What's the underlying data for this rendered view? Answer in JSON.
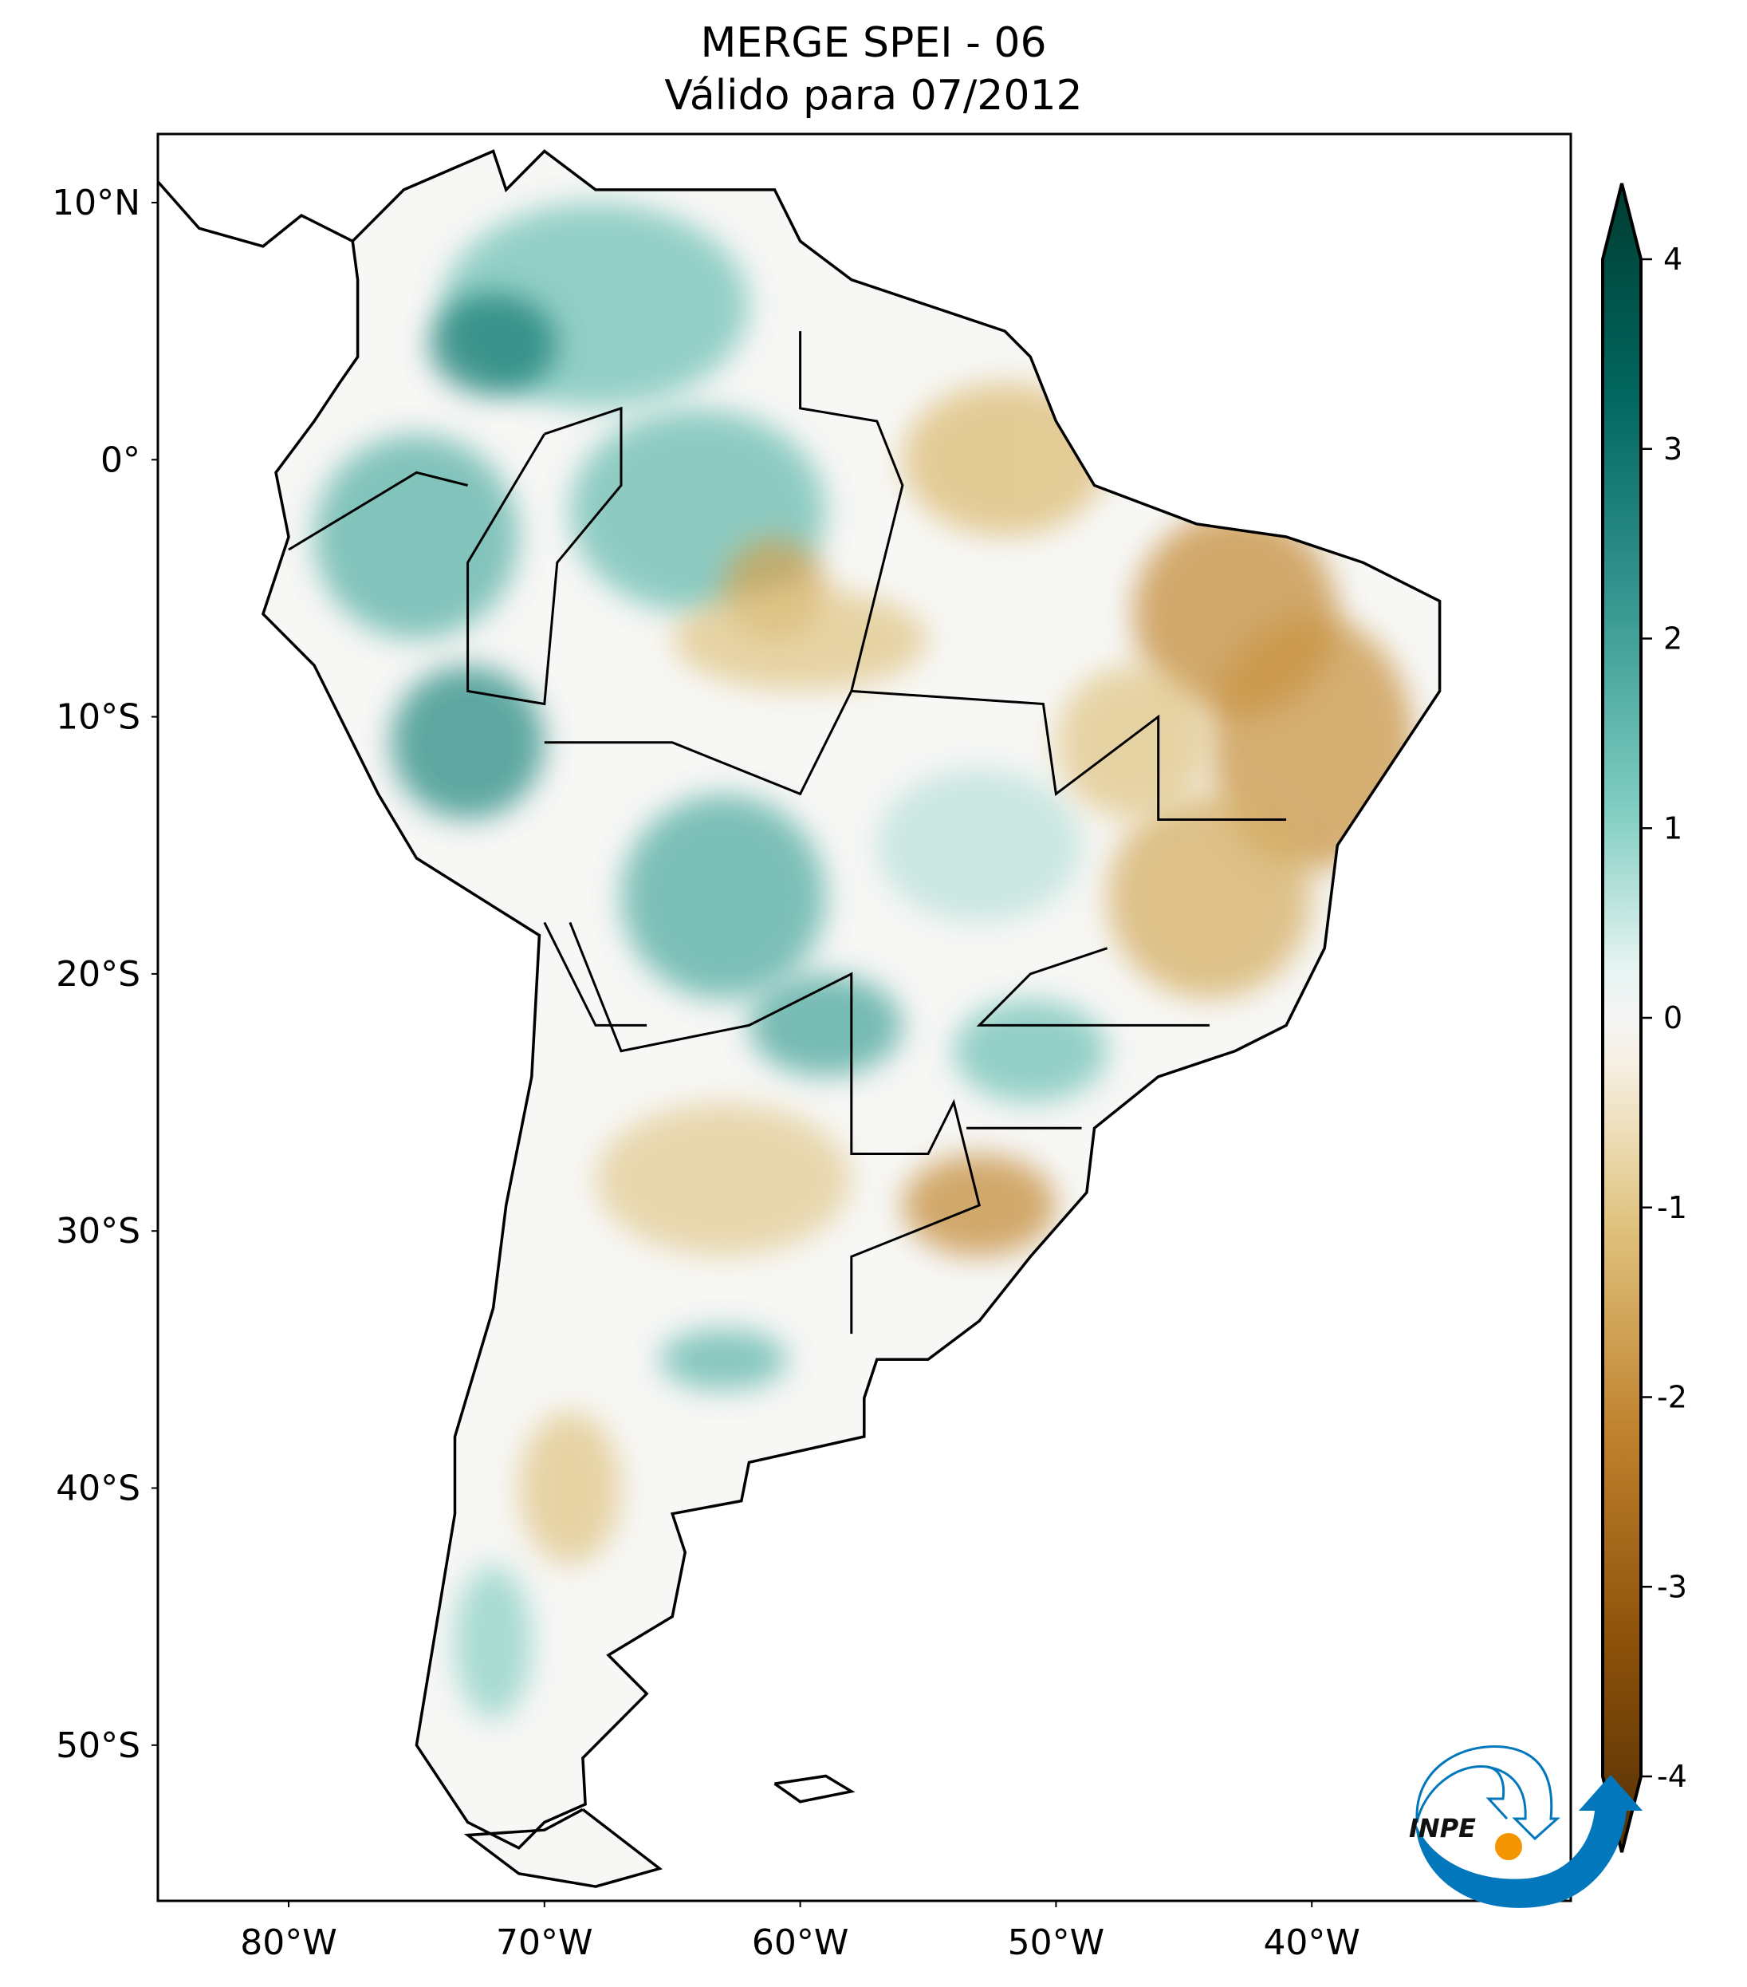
{
  "title": {
    "line1": "MERGE   SPEI - 06",
    "line2": "Válido para 07/2012"
  },
  "map": {
    "projection": "PlateCarree",
    "lon_range": [
      -85.1,
      -29.9
    ],
    "lat_range": [
      -56,
      12.7
    ],
    "lat_ticks": [
      {
        "value": 10,
        "label": "10°N"
      },
      {
        "value": 0,
        "label": "0°"
      },
      {
        "value": -10,
        "label": "10°S"
      },
      {
        "value": -20,
        "label": "20°S"
      },
      {
        "value": -30,
        "label": "30°S"
      },
      {
        "value": -40,
        "label": "40°S"
      },
      {
        "value": -50,
        "label": "50°S"
      }
    ],
    "lon_ticks": [
      {
        "value": -80,
        "label": "80°W"
      },
      {
        "value": -70,
        "label": "70°W"
      },
      {
        "value": -60,
        "label": "60°W"
      },
      {
        "value": -50,
        "label": "50°W"
      },
      {
        "value": -40,
        "label": "40°W"
      }
    ]
  },
  "colorbar": {
    "colormap": "BrBG",
    "range": [
      -4,
      4
    ],
    "extend": "both",
    "ticks": [
      {
        "value": 4,
        "label": "4"
      },
      {
        "value": 3,
        "label": "3"
      },
      {
        "value": 2,
        "label": "2"
      },
      {
        "value": 1,
        "label": "1"
      },
      {
        "value": 0,
        "label": "0"
      },
      {
        "value": -1,
        "label": "-1"
      },
      {
        "value": -2,
        "label": "-2"
      },
      {
        "value": -3,
        "label": "-3"
      },
      {
        "value": -4,
        "label": "-4"
      }
    ]
  },
  "logo": {
    "text": "INPE",
    "colors": {
      "blue": "#0277bb",
      "orange": "#f29500"
    }
  }
}
